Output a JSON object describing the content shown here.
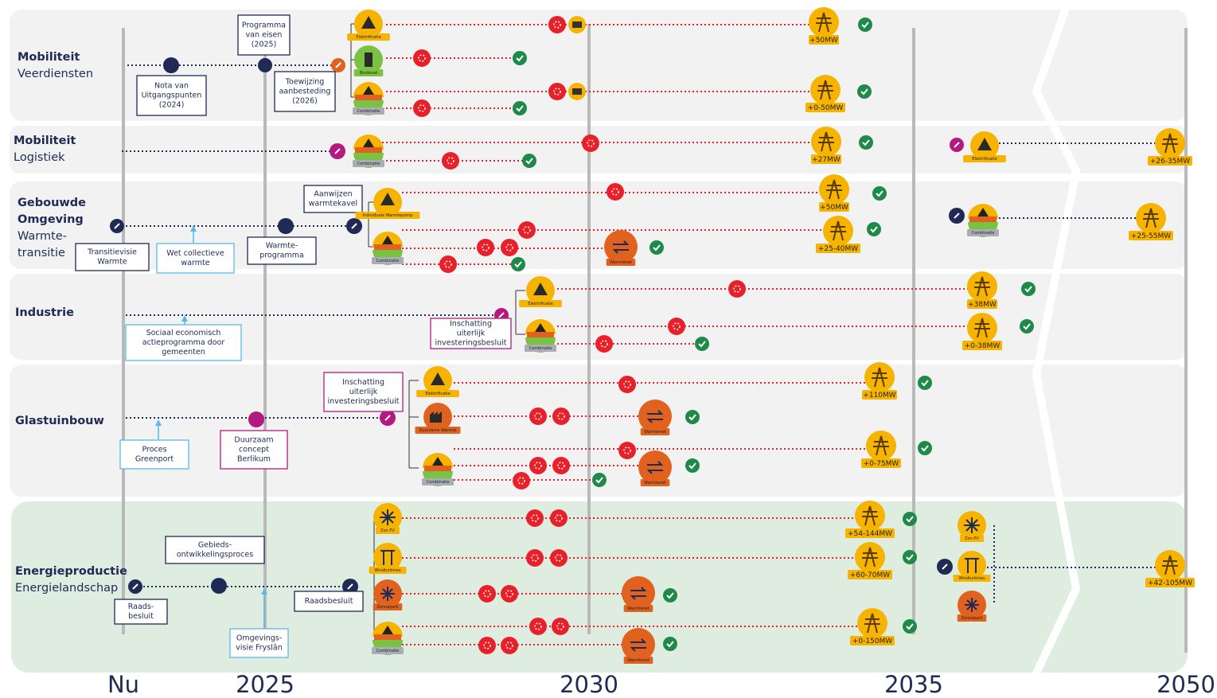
{
  "timeline": [
    "Nu",
    "2025",
    "2030",
    "2035",
    "2050"
  ],
  "rows": [
    {
      "title": [
        "Mobiliteit"
      ],
      "subtitle": [
        "Veerdiensten"
      ]
    },
    {
      "title": [
        "Mobiliteit"
      ],
      "subtitle": [
        "Logistiek"
      ]
    },
    {
      "title": [
        "Gebouwde",
        "Omgeving"
      ],
      "subtitle": [
        "Warmte-",
        "transitie"
      ]
    },
    {
      "title": [
        "Industrie"
      ],
      "subtitle": []
    },
    {
      "title": [
        "Glastuinbouw"
      ],
      "subtitle": []
    },
    {
      "title": [
        "Energieproductie"
      ],
      "subtitle": [
        "Energielandschap"
      ]
    }
  ],
  "notes": [
    [
      "Programma",
      "van eisen",
      "(2025)"
    ],
    [
      "Nota van",
      "Uitgangspunten",
      "(2024)"
    ],
    [
      "Toewijzing",
      "aanbesteding",
      "(2026)"
    ],
    [
      "Aanwijzen",
      "warmtekavel"
    ],
    [
      "Transitievisie",
      "Warmte"
    ],
    [
      "Wet collectieve",
      "warmte"
    ],
    [
      "Warmte-",
      "programma"
    ],
    [
      "Sociaal economisch",
      "actieprogramma door",
      "gemeenten"
    ],
    [
      "Inschatting",
      "uiterlijk",
      "investeringsbesluit"
    ],
    [
      "Inschatting",
      "uiterlijk",
      "investeringsbesluit"
    ],
    [
      "Proces",
      "Greenport"
    ],
    [
      "Duurzaam",
      "concept",
      "Berlikum"
    ],
    [
      "Gebieds-",
      "ontwikkelingsproces"
    ],
    [
      "Raads-",
      "besluit"
    ],
    [
      "Raadsbesluit"
    ],
    [
      "Omgevings-",
      "visie Fryslân"
    ]
  ],
  "icons": [
    "Elektrificatie",
    "Biodiesel",
    "Combinatie",
    "Combinatie",
    "Elektrificatie",
    "Individuele Warmtepomp",
    "Combinatie",
    "Warmtenet",
    "Combinatie",
    "Elektrificatie",
    "Combinatie",
    "Elektrificatie",
    "Duurzame Warmte",
    "Combinatie",
    "Warmtenet",
    "Warmtenet",
    "Zon PV",
    "Windturbines",
    "Zonnepark",
    "Combinatie",
    "Warmtenet",
    "Warmtenet",
    "Zon PV",
    "Windturbines",
    "Zonnepark"
  ],
  "capacities": [
    "+50MW",
    "+0-50MW",
    "+27MW",
    "+26-35MW",
    "+50MW",
    "+25-40MW",
    "+25-55MW",
    "+38MW",
    "+0-38MW",
    "+110MW",
    "+0-75MW",
    "+54-144MW",
    "+60-70MW",
    "+0-150MW",
    "+42-105MW"
  ]
}
